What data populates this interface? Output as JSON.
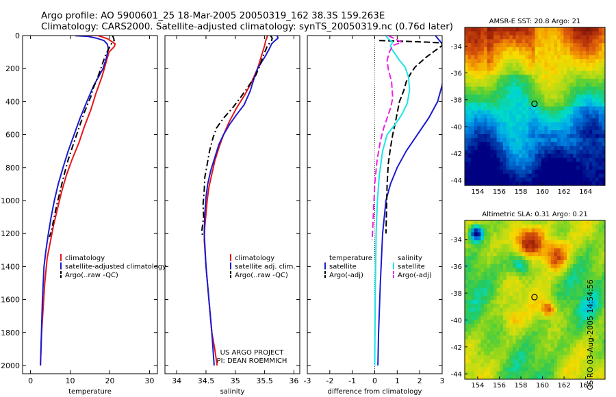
{
  "header": {
    "line1": "Argo profile: AO 5900601_25 18-Mar-2005 20050319_162 38.3S 159.263E",
    "line2": "Climatology: CARS2000. Satellite-adjusted climatology: synTS_20050319.nc (0.76d later)"
  },
  "credit": "CSIRO 03-Aug-2005 14:54:56",
  "colors": {
    "red": "#e8141a",
    "blue": "#1a1ad2",
    "black": "#000000",
    "cyan": "#19e6e6",
    "magenta": "#f01ee6"
  },
  "chart_data": [
    {
      "id": "temperature",
      "type": "line",
      "xlabel": "temperature",
      "xlim": [
        -2,
        32
      ],
      "ylim": [
        2050,
        0
      ],
      "xticks": [
        0,
        10,
        20,
        30
      ],
      "yticks": [
        0,
        200,
        400,
        600,
        800,
        1000,
        1200,
        1400,
        1600,
        1800,
        2000
      ],
      "legend": [
        "climatology",
        "satellite-adjusted climatology",
        "Argo(..raw -QC)"
      ],
      "series": [
        {
          "name": "climatology",
          "color": "red",
          "dash": "",
          "x": [
            14.6,
            16,
            17,
            19.5,
            21.3,
            21.2,
            20.8,
            19.8,
            19.2,
            18.6,
            18,
            16.5,
            15.2,
            13.6,
            12.2,
            10.5,
            9,
            7.8,
            6.8,
            5.8,
            5,
            4.2,
            3.6,
            3.2,
            2.8,
            2.5
          ],
          "y": [
            0,
            0,
            0,
            20,
            50,
            65,
            75,
            100,
            150,
            200,
            250,
            350,
            450,
            550,
            650,
            750,
            850,
            950,
            1050,
            1150,
            1250,
            1350,
            1500,
            1650,
            1800,
            2000
          ]
        },
        {
          "name": "satellite-adjusted climatology",
          "color": "blue",
          "dash": "",
          "x": [
            11.3,
            14.5,
            16.5,
            18.5,
            19.3,
            19.5,
            19.6,
            19.2,
            18.3,
            16,
            14.2,
            12.5,
            11,
            9.5,
            8.2,
            7,
            6,
            5.2,
            4.5,
            3.9,
            3.4,
            3,
            2.5
          ],
          "y": [
            1,
            5,
            15,
            30,
            50,
            65,
            80,
            130,
            200,
            300,
            400,
            500,
            600,
            700,
            800,
            900,
            1000,
            1100,
            1200,
            1300,
            1400,
            1600,
            2000
          ]
        },
        {
          "name": "Argo(..raw -QC)",
          "color": "black",
          "dash": "9,4,2,4",
          "x": [
            20.7,
            21,
            21.1,
            20.5,
            19.6,
            18.8,
            18,
            17.3,
            16.5,
            15.8,
            15.2,
            14.5,
            13.5,
            12.5,
            11.5,
            10.5,
            9.4,
            8.4,
            7.5,
            6.6,
            5.8,
            5.3,
            4.8
          ],
          "y": [
            0,
            20,
            30,
            45,
            85,
            125,
            180,
            230,
            280,
            320,
            370,
            410,
            470,
            540,
            610,
            680,
            760,
            850,
            940,
            1030,
            1120,
            1180,
            1220
          ]
        }
      ]
    },
    {
      "id": "salinity",
      "type": "line",
      "xlabel": "salinity",
      "xlim": [
        33.8,
        36.1
      ],
      "ylim": [
        2050,
        0
      ],
      "xticks": [
        34,
        34.5,
        35,
        35.5,
        36
      ],
      "annotation": [
        "US ARGO PROJECT",
        "PI: DEAN ROEMMICH"
      ],
      "legend": [
        "climatology",
        "satellite adj. clim.",
        "Argo(..raw -QC)"
      ],
      "series": [
        {
          "name": "climatology",
          "color": "red",
          "dash": "",
          "x": [
            35.55,
            35.52,
            35.5,
            35.45,
            35.38,
            35.28,
            35.16,
            35.02,
            34.9,
            34.8,
            34.72,
            34.65,
            34.6,
            34.55,
            34.52,
            34.5,
            34.48,
            34.47,
            34.5,
            34.55,
            34.6,
            34.65,
            34.69
          ],
          "y": [
            0,
            30,
            60,
            120,
            200,
            280,
            360,
            440,
            520,
            600,
            680,
            760,
            840,
            920,
            1000,
            1080,
            1160,
            1240,
            1400,
            1600,
            1800,
            1900,
            2000
          ]
        },
        {
          "name": "satellite adj. clim.",
          "color": "blue",
          "dash": "",
          "x": [
            35.71,
            35.73,
            35.68,
            35.62,
            35.58,
            35.52,
            35.45,
            35.38,
            35.32,
            35.25,
            35.15,
            35.02,
            34.9,
            34.8,
            34.72,
            34.65,
            34.58,
            34.53,
            34.5,
            34.48,
            34.47,
            34.5,
            34.55,
            34.6,
            34.64
          ],
          "y": [
            0,
            15,
            30,
            50,
            80,
            120,
            160,
            200,
            260,
            340,
            420,
            480,
            540,
            600,
            660,
            740,
            820,
            900,
            980,
            1080,
            1200,
            1400,
            1600,
            1800,
            2000
          ]
        },
        {
          "name": "Argo(..raw -QC)",
          "color": "black",
          "dash": "9,4,2,4",
          "x": [
            35.6,
            35.63,
            35.62,
            35.55,
            35.48,
            35.42,
            35.35,
            35.22,
            35.1,
            34.95,
            34.8,
            34.68,
            34.62,
            34.56,
            34.52,
            34.48,
            34.47,
            34.45,
            34.46,
            34.43,
            34.44
          ],
          "y": [
            0,
            15,
            30,
            60,
            120,
            180,
            240,
            310,
            370,
            440,
            500,
            560,
            620,
            700,
            780,
            860,
            940,
            1020,
            1100,
            1180,
            1220
          ]
        }
      ]
    },
    {
      "id": "difference",
      "type": "line",
      "xlabel": "difference from climatology",
      "xlim": [
        -3,
        3
      ],
      "ylim": [
        2050,
        0
      ],
      "xticks": [
        -3,
        -2,
        -1,
        0,
        1,
        2,
        3
      ],
      "legend_left": {
        "title": "temperature",
        "items": [
          "satellite",
          "Argo(-adj)"
        ]
      },
      "legend_right": {
        "title": "salinity",
        "items": [
          "satellite",
          "Argo(-adj)"
        ]
      },
      "series": [
        {
          "name": "temperature satellite",
          "color": "blue",
          "dash": "",
          "x": [
            2.7,
            3,
            3.1,
            3.1,
            3,
            2.8,
            2.4,
            1.9,
            1.4,
            1,
            0.7,
            0.5,
            0.35,
            0.25,
            0.17,
            0.14
          ],
          "y": [
            0,
            50,
            100,
            200,
            300,
            400,
            500,
            600,
            700,
            800,
            900,
            1000,
            1200,
            1500,
            1800,
            2000
          ]
        },
        {
          "name": "temperature Argo(-adj)",
          "color": "black",
          "dash": "9,4",
          "x": [
            0.2,
            1.4,
            2.4,
            3,
            3,
            2.7,
            2.3,
            1.8,
            1.6,
            1.4,
            1.3,
            1.1,
            1,
            0.9,
            0.8,
            0.7,
            0.6,
            0.55,
            0.5
          ],
          "y": [
            30,
            35,
            40,
            45,
            60,
            90,
            130,
            190,
            230,
            280,
            330,
            400,
            470,
            540,
            600,
            680,
            780,
            900,
            1200
          ]
        },
        {
          "name": "salinity satellite",
          "color": "cyan",
          "dash": "",
          "x": [
            0.5,
            0.6,
            0.8,
            0.7,
            0.75,
            0.9,
            1.1,
            1.35,
            1.5,
            1.55,
            1.45,
            1.2,
            0.9,
            0.55,
            0.35,
            0.2,
            0.12,
            0.06,
            0.02,
            0
          ],
          "y": [
            0,
            20,
            40,
            60,
            80,
            110,
            150,
            190,
            250,
            330,
            410,
            480,
            540,
            600,
            700,
            850,
            1000,
            1200,
            1600,
            2000
          ]
        },
        {
          "name": "salinity Argo(-adj)",
          "color": "magenta",
          "dash": "9,4",
          "x": [
            0.6,
            1.2,
            0.8,
            0.65,
            0.55,
            0.6,
            0.75,
            0.8,
            0.7,
            0.55,
            0.4,
            0.25,
            0.1,
            0,
            -0.05,
            -0.1,
            -0.12
          ],
          "y": [
            0,
            40,
            60,
            100,
            150,
            200,
            280,
            380,
            440,
            500,
            560,
            640,
            760,
            900,
            1050,
            1200,
            1240
          ]
        }
      ],
      "zero_line": true
    },
    {
      "id": "sst-map",
      "type": "heatmap",
      "title": "AMSR-E SST: 20.8 Argo: 21",
      "xticks": [
        154,
        156,
        158,
        160,
        162,
        164
      ],
      "yticks": [
        -34,
        -36,
        -38,
        -40,
        -42,
        -44
      ],
      "xlim": [
        152.8,
        165.8
      ],
      "ylim": [
        -44.4,
        -32.6
      ],
      "marker": {
        "lon": 159.26,
        "lat": -38.3
      }
    },
    {
      "id": "sla-map",
      "type": "heatmap",
      "title": "Altimetric SLA: 0.31 Argo: 0.21",
      "xticks": [
        154,
        156,
        158,
        160,
        162,
        164
      ],
      "yticks": [
        -34,
        -36,
        -38,
        -40,
        -42,
        -44
      ],
      "xlim": [
        152.8,
        165.8
      ],
      "ylim": [
        -44.4,
        -32.6
      ],
      "marker": {
        "lon": 159.26,
        "lat": -38.3
      }
    }
  ]
}
